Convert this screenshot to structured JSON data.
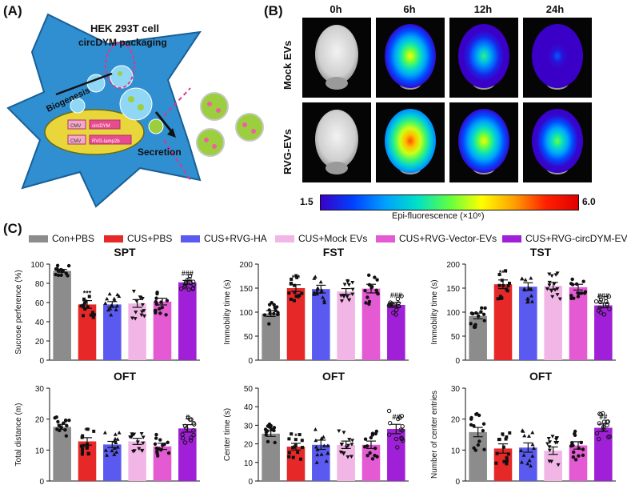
{
  "panels": {
    "a": "(A)",
    "b": "(B)",
    "c": "(C)"
  },
  "panel_a": {
    "cell_label": "HEK 293T cell",
    "packaging_label": "circDYM packaging",
    "biogenesis_label": "Biogenesis",
    "secretion_label": "Secretion",
    "plasmid1_promoter": "CMV",
    "plasmid1_gene": "circDYM",
    "plasmid2_promoter": "CMV",
    "plasmid2_gene": "RVG-lamp2b",
    "colors": {
      "cell": "#2f8fd1",
      "nucleus": "#e8d63a",
      "ev": "#9ccf3f",
      "dash": "#e0358e"
    }
  },
  "panel_b": {
    "timepoints": [
      "0h",
      "6h",
      "12h",
      "24h"
    ],
    "rows": [
      "Mock EVs",
      "RVG-EVs"
    ],
    "colorbar_min": "1.5",
    "colorbar_max": "6.0",
    "colorbar_label": "Epi-fluorescence (×10⁶)",
    "signal_levels": [
      [
        0,
        0.72,
        0.5,
        0.18
      ],
      [
        0,
        0.95,
        0.72,
        0.58
      ]
    ]
  },
  "legend": [
    {
      "label": "Con+PBS",
      "color": "#8c8c8c"
    },
    {
      "label": "CUS+PBS",
      "color": "#e62828"
    },
    {
      "label": "CUS+RVG-HA",
      "color": "#5a5af0"
    },
    {
      "label": "CUS+Mock EVs",
      "color": "#f2b6e6"
    },
    {
      "label": "CUS+RVG-Vector-EVs",
      "color": "#e35ad2"
    },
    {
      "label": "CUS+RVG-circDYM-EVs",
      "color": "#a020d8"
    }
  ],
  "chart_data": [
    {
      "type": "bar",
      "title": "SPT",
      "ylabel": "Sucrose perference (%)",
      "ylim": [
        0,
        100
      ],
      "yticks": [
        0,
        20,
        40,
        60,
        80,
        100
      ],
      "categories": [
        "Con+PBS",
        "CUS+PBS",
        "CUS+RVG-HA",
        "CUS+Mock EVs",
        "CUS+RVG-Vector-EVs",
        "CUS+RVG-circDYM-EVs"
      ],
      "values": [
        93,
        58,
        58,
        59,
        61,
        81
      ],
      "errors": [
        1.5,
        4,
        3,
        4,
        3.5,
        2
      ],
      "annotations": [
        "",
        "***",
        "",
        "",
        "",
        "###"
      ]
    },
    {
      "type": "bar",
      "title": "FST",
      "ylabel": "Immobility time (s)",
      "ylim": [
        0,
        200
      ],
      "yticks": [
        0,
        50,
        100,
        150,
        200
      ],
      "categories": [
        "Con+PBS",
        "CUS+PBS",
        "CUS+RVG-HA",
        "CUS+Mock EVs",
        "CUS+RVG-Vector-EVs",
        "CUS+RVG-circDYM-EVs"
      ],
      "values": [
        97,
        150,
        148,
        143,
        149,
        115
      ],
      "errors": [
        6,
        7,
        8,
        6,
        9,
        5
      ],
      "annotations": [
        "",
        "***",
        "",
        "",
        "",
        "###"
      ]
    },
    {
      "type": "bar",
      "title": "TST",
      "ylabel": "Immobility time (s)",
      "ylim": [
        0,
        200
      ],
      "yticks": [
        0,
        50,
        100,
        150,
        200
      ],
      "categories": [
        "Con+PBS",
        "CUS+PBS",
        "CUS+RVG-HA",
        "CUS+Mock EVs",
        "CUS+RVG-Vector-EVs",
        "CUS+RVG-circDYM-EVs"
      ],
      "values": [
        92,
        158,
        153,
        155,
        152,
        114
      ],
      "errors": [
        6,
        9,
        8,
        7,
        6,
        5
      ],
      "annotations": [
        "",
        "***",
        "",
        "",
        "",
        "###"
      ]
    },
    {
      "type": "bar",
      "title": "OFT",
      "ylabel": "Total distance (m)",
      "ylim": [
        0,
        30
      ],
      "yticks": [
        0,
        10,
        20,
        30
      ],
      "categories": [
        "Con+PBS",
        "CUS+PBS",
        "CUS+RVG-HA",
        "CUS+Mock EVs",
        "CUS+RVG-Vector-EVs",
        "CUS+RVG-circDYM-EVs"
      ],
      "values": [
        17.5,
        12.8,
        11.8,
        12.8,
        11.2,
        17
      ],
      "errors": [
        0.8,
        1.2,
        1,
        1,
        1,
        1.2
      ],
      "annotations": [
        "",
        "**",
        "",
        "",
        "",
        "#"
      ]
    },
    {
      "type": "bar",
      "title": "OFT",
      "ylabel": "Center time (s)",
      "ylim": [
        0,
        50
      ],
      "yticks": [
        0,
        10,
        20,
        30,
        40,
        50
      ],
      "categories": [
        "Con+PBS",
        "CUS+PBS",
        "CUS+RVG-HA",
        "CUS+Mock EVs",
        "CUS+RVG-Vector-EVs",
        "CUS+RVG-circDYM-EVs"
      ],
      "values": [
        25.5,
        18.5,
        19.5,
        19.5,
        19.5,
        28
      ],
      "errors": [
        1.5,
        1.8,
        2.5,
        2,
        2,
        2.5
      ],
      "annotations": [
        "",
        "*",
        "",
        "",
        "",
        "##"
      ]
    },
    {
      "type": "bar",
      "title": "OFT",
      "ylabel": "Number of center entries",
      "ylim": [
        0,
        30
      ],
      "yticks": [
        0,
        10,
        20,
        30
      ],
      "categories": [
        "Con+PBS",
        "CUS+PBS",
        "CUS+RVG-HA",
        "CUS+Mock EVs",
        "CUS+RVG-Vector-EVs",
        "CUS+RVG-circDYM-EVs"
      ],
      "values": [
        15.8,
        10.5,
        10.8,
        9.8,
        11.5,
        17.2
      ],
      "errors": [
        1.5,
        1.5,
        1.5,
        1.2,
        1.2,
        1.2
      ],
      "annotations": [
        "",
        "*",
        "",
        "",
        "",
        "##"
      ]
    }
  ]
}
